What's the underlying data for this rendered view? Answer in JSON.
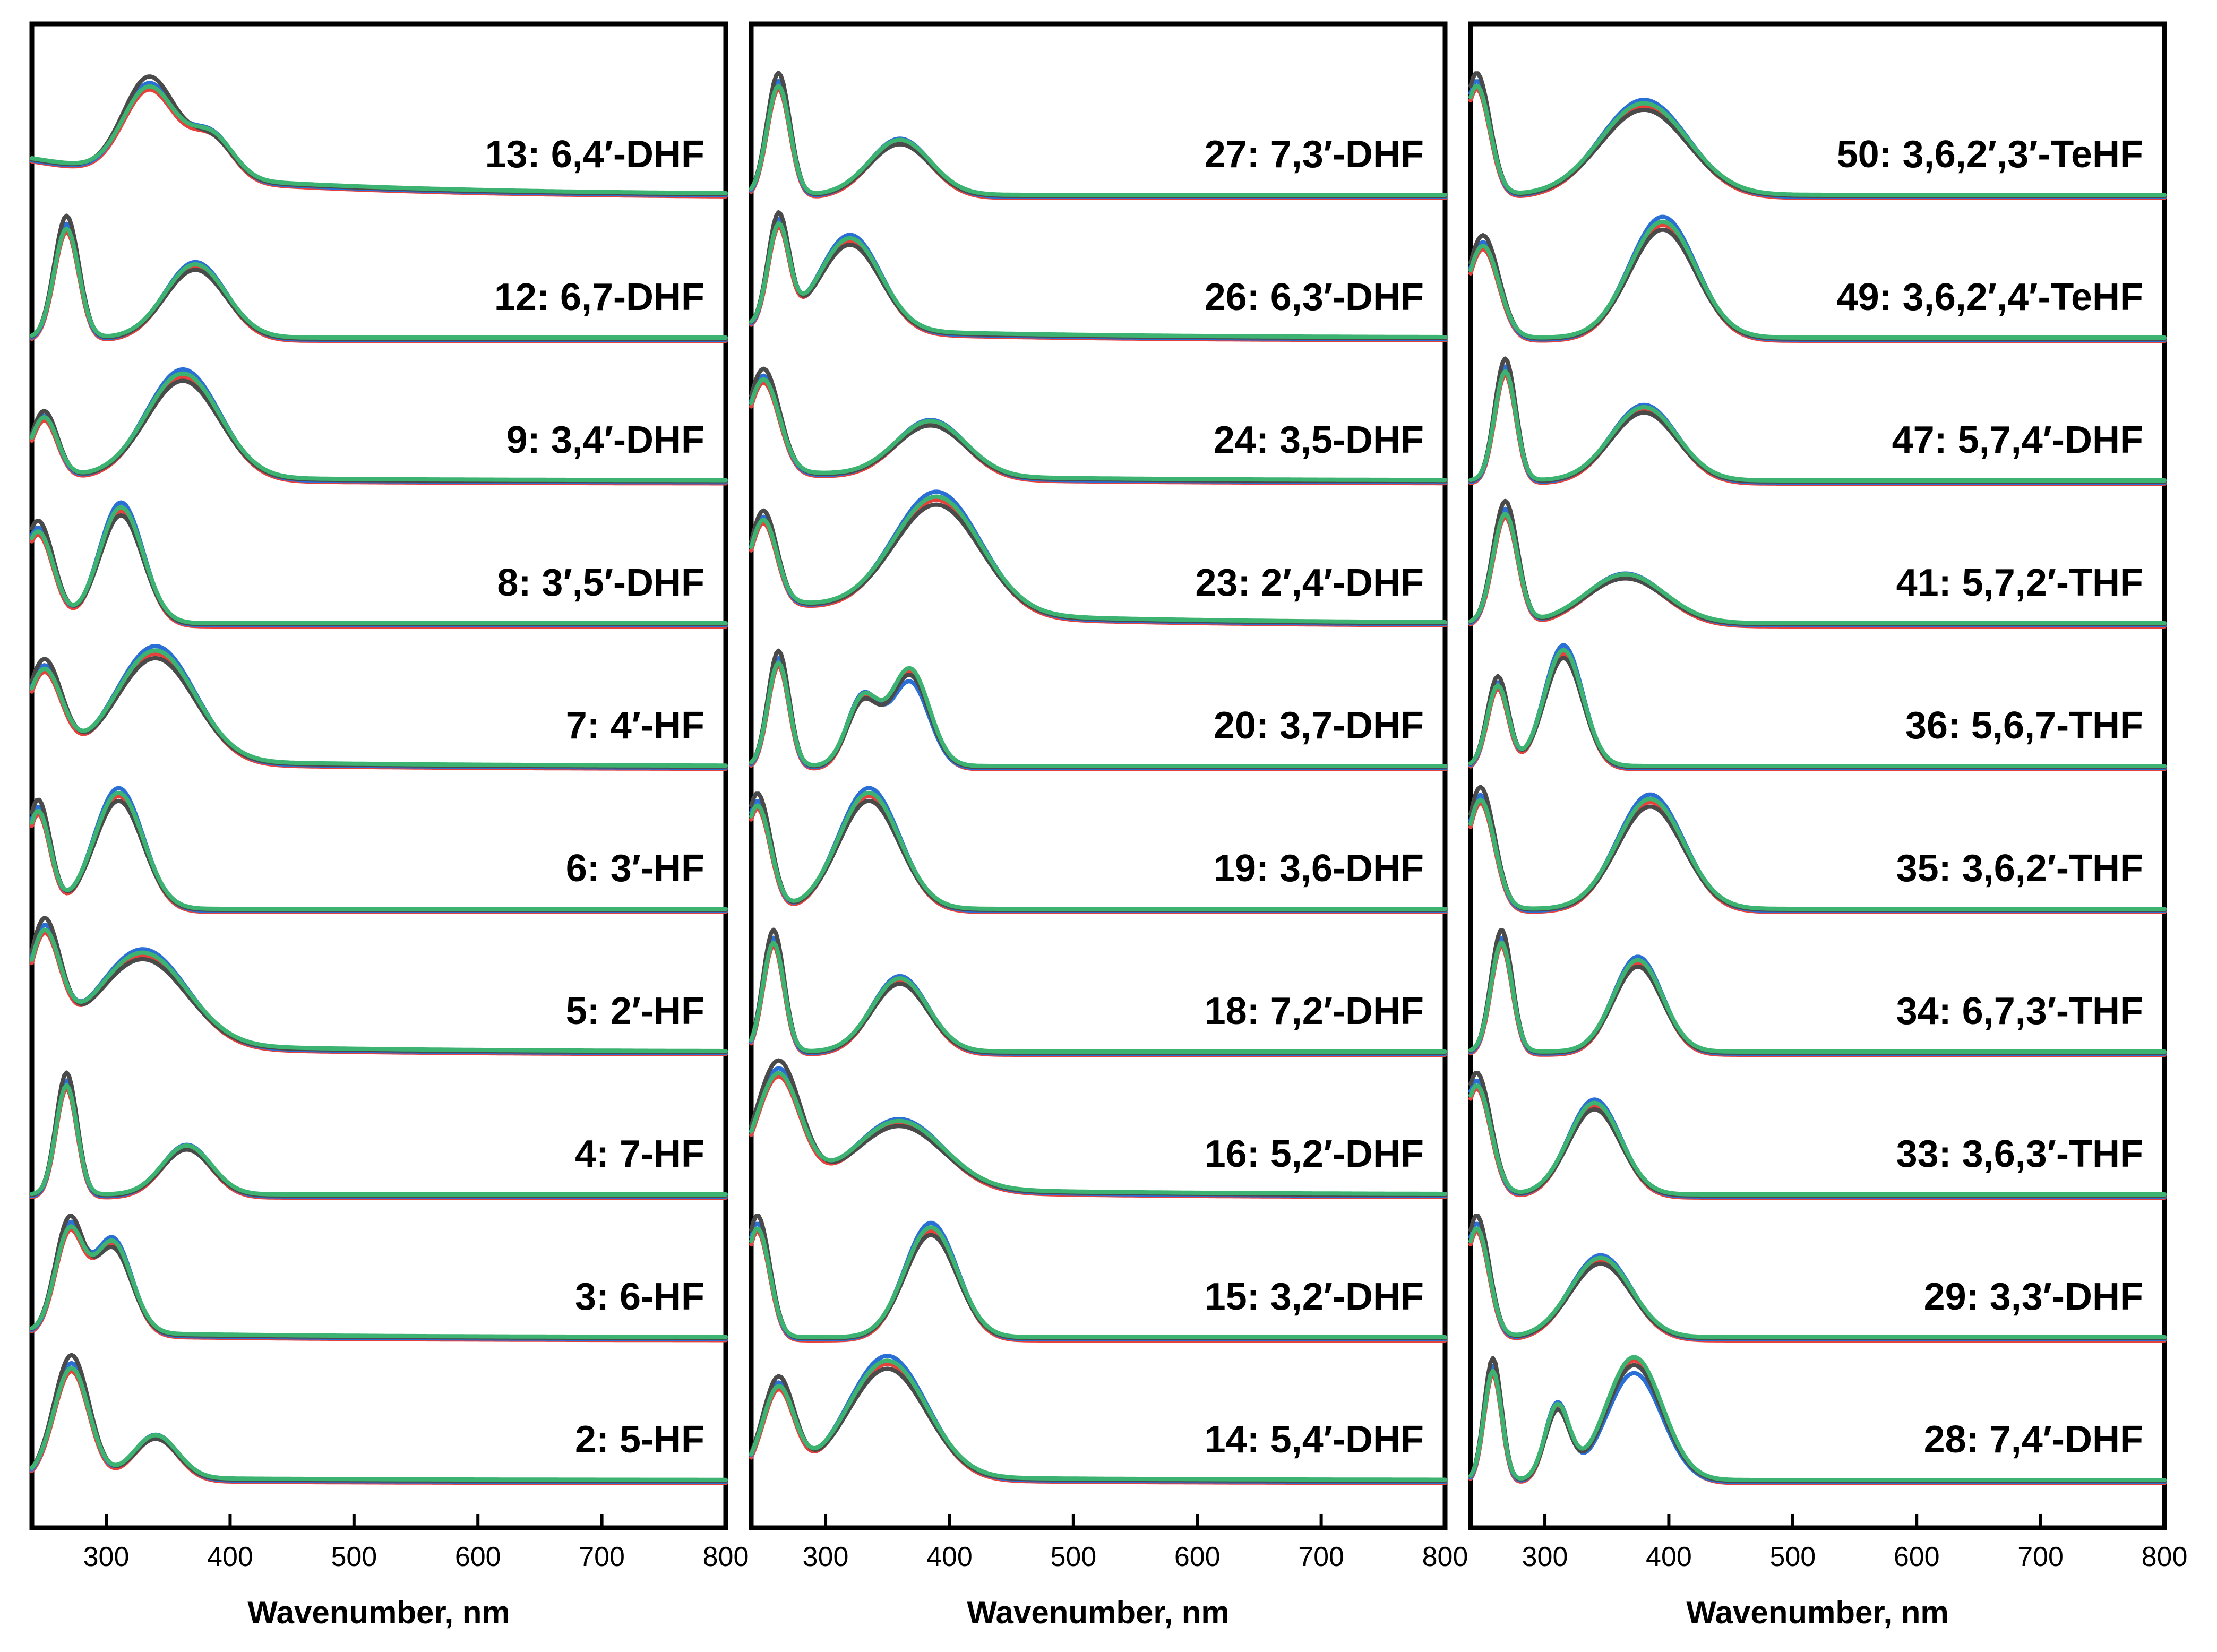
{
  "colors": {
    "red": "#e8413c",
    "blue": "#2a6fd6",
    "dark": "#4a4a4a",
    "green": "#3cb371"
  },
  "chart_data": [
    {
      "type": "line",
      "panel": "left",
      "xlabel": "Wavenumber, nm",
      "ylabel": "",
      "xlim": [
        240,
        800
      ],
      "xticks": [
        "300",
        "400",
        "500",
        "600",
        "700",
        "800"
      ],
      "series_colors": [
        "red",
        "blue",
        "dark",
        "green"
      ],
      "traces": [
        {
          "label": "13: 6,4′-DHF",
          "peaks": [
            {
              "x": 335,
              "h": 0.75,
              "w": 30
            },
            {
              "x": 385,
              "h": 0.35,
              "w": 25
            }
          ],
          "base": 0.3
        },
        {
          "label": "12: 6,7-DHF",
          "peaks": [
            {
              "x": 268,
              "h": 0.95,
              "w": 14
            },
            {
              "x": 372,
              "h": 0.6,
              "w": 35
            }
          ],
          "base": 0.0
        },
        {
          "label": "9: 3,4′-DHF",
          "peaks": [
            {
              "x": 250,
              "h": 0.5,
              "w": 15
            },
            {
              "x": 362,
              "h": 0.85,
              "w": 42
            }
          ],
          "base": 0.05
        },
        {
          "label": "8: 3′,5′-DHF",
          "peaks": [
            {
              "x": 245,
              "h": 0.8,
              "w": 18
            },
            {
              "x": 312,
              "h": 0.95,
              "w": 25
            }
          ],
          "base": 0.0
        },
        {
          "label": "7: 4′-HF",
          "peaks": [
            {
              "x": 250,
              "h": 0.75,
              "w": 20
            },
            {
              "x": 340,
              "h": 0.9,
              "w": 45
            }
          ],
          "base": 0.08
        },
        {
          "label": "6: 3′-HF",
          "peaks": [
            {
              "x": 245,
              "h": 0.85,
              "w": 14
            },
            {
              "x": 310,
              "h": 0.95,
              "w": 28
            }
          ],
          "base": 0.0
        },
        {
          "label": "5: 2′-HF",
          "peaks": [
            {
              "x": 250,
              "h": 0.9,
              "w": 18
            },
            {
              "x": 330,
              "h": 0.75,
              "w": 50
            }
          ],
          "base": 0.1
        },
        {
          "label": "4: 7-HF",
          "peaks": [
            {
              "x": 268,
              "h": 0.95,
              "w": 12
            },
            {
              "x": 365,
              "h": 0.4,
              "w": 28
            }
          ],
          "base": 0.0
        },
        {
          "label": "3: 6-HF",
          "peaks": [
            {
              "x": 270,
              "h": 0.85,
              "w": 16
            },
            {
              "x": 305,
              "h": 0.75,
              "w": 22
            }
          ],
          "base": 0.05
        },
        {
          "label": "2: 5-HF",
          "peaks": [
            {
              "x": 272,
              "h": 0.95,
              "w": 20
            },
            {
              "x": 340,
              "h": 0.35,
              "w": 25
            }
          ],
          "base": 0.03
        }
      ]
    },
    {
      "type": "line",
      "panel": "middle",
      "xlabel": "Wavenumber, nm",
      "ylabel": "",
      "xlim": [
        240,
        800
      ],
      "xticks": [
        "300",
        "400",
        "500",
        "600",
        "700",
        "800"
      ],
      "series_colors": [
        "red",
        "blue",
        "dark",
        "green"
      ],
      "traces": [
        {
          "label": "27: 7,3′-DHF",
          "peaks": [
            {
              "x": 262,
              "h": 0.95,
              "w": 13
            },
            {
              "x": 360,
              "h": 0.45,
              "w": 35
            }
          ],
          "base": 0.0
        },
        {
          "label": "26: 6,3′-DHF",
          "peaks": [
            {
              "x": 262,
              "h": 0.85,
              "w": 12
            },
            {
              "x": 320,
              "h": 0.75,
              "w": 35
            }
          ],
          "base": 0.1
        },
        {
          "label": "24: 3,5-DHF",
          "peaks": [
            {
              "x": 250,
              "h": 0.8,
              "w": 18
            },
            {
              "x": 385,
              "h": 0.45,
              "w": 40
            }
          ],
          "base": 0.08
        },
        {
          "label": "23: 2′,4′-DHF",
          "peaks": [
            {
              "x": 250,
              "h": 0.7,
              "w": 15
            },
            {
              "x": 390,
              "h": 0.95,
              "w": 50
            }
          ],
          "base": 0.2
        },
        {
          "label": "20: 3,7-DHF",
          "peaks": [
            {
              "x": 262,
              "h": 0.9,
              "w": 12
            },
            {
              "x": 330,
              "h": 0.55,
              "w": 18
            },
            {
              "x": 368,
              "h": 0.75,
              "w": 22
            }
          ],
          "base": 0.0
        },
        {
          "label": "19: 3,6-DHF",
          "peaks": [
            {
              "x": 245,
              "h": 0.9,
              "w": 15
            },
            {
              "x": 335,
              "h": 0.95,
              "w": 35
            }
          ],
          "base": 0.0
        },
        {
          "label": "18: 7,2′-DHF",
          "peaks": [
            {
              "x": 258,
              "h": 0.95,
              "w": 12
            },
            {
              "x": 360,
              "h": 0.6,
              "w": 32
            }
          ],
          "base": 0.0
        },
        {
          "label": "16: 5,2′-DHF",
          "peaks": [
            {
              "x": 262,
              "h": 0.95,
              "w": 25
            },
            {
              "x": 360,
              "h": 0.55,
              "w": 50
            }
          ],
          "base": 0.1
        },
        {
          "label": "15: 3,2′-DHF",
          "peaks": [
            {
              "x": 245,
              "h": 0.95,
              "w": 14
            },
            {
              "x": 385,
              "h": 0.9,
              "w": 30
            }
          ],
          "base": 0.0
        },
        {
          "label": "14: 5,4′-DHF",
          "peaks": [
            {
              "x": 262,
              "h": 0.75,
              "w": 18
            },
            {
              "x": 350,
              "h": 0.95,
              "w": 45
            }
          ],
          "base": 0.05
        }
      ]
    },
    {
      "type": "line",
      "panel": "right",
      "xlabel": "Wavenumber, nm",
      "ylabel": "",
      "xlim": [
        240,
        800
      ],
      "xticks": [
        "300",
        "400",
        "500",
        "600",
        "700",
        "800"
      ],
      "series_colors": [
        "red",
        "blue",
        "dark",
        "green"
      ],
      "traces": [
        {
          "label": "50: 3,6,2′,3′-TeHF",
          "peaks": [
            {
              "x": 245,
              "h": 0.95,
              "w": 15
            },
            {
              "x": 380,
              "h": 0.75,
              "w": 50
            }
          ],
          "base": 0.0
        },
        {
          "label": "49: 3,6,2′,4′-TeHF",
          "peaks": [
            {
              "x": 250,
              "h": 0.8,
              "w": 18
            },
            {
              "x": 395,
              "h": 0.95,
              "w": 38
            }
          ],
          "base": 0.0
        },
        {
          "label": "47: 5,7,4′-DHF",
          "peaks": [
            {
              "x": 268,
              "h": 0.95,
              "w": 12
            },
            {
              "x": 380,
              "h": 0.6,
              "w": 38
            }
          ],
          "base": 0.0
        },
        {
          "label": "41: 5,7,2′-THF",
          "peaks": [
            {
              "x": 268,
              "h": 0.95,
              "w": 14
            },
            {
              "x": 365,
              "h": 0.4,
              "w": 45
            }
          ],
          "base": 0.0
        },
        {
          "label": "36: 5,6,7-THF",
          "peaks": [
            {
              "x": 262,
              "h": 0.7,
              "w": 12
            },
            {
              "x": 315,
              "h": 0.95,
              "w": 22
            }
          ],
          "base": 0.0
        },
        {
          "label": "35: 3,6,2′-THF",
          "peaks": [
            {
              "x": 248,
              "h": 0.95,
              "w": 16
            },
            {
              "x": 385,
              "h": 0.9,
              "w": 38
            }
          ],
          "base": 0.0
        },
        {
          "label": "34: 6,7,3′-THF",
          "peaks": [
            {
              "x": 265,
              "h": 0.95,
              "w": 12
            },
            {
              "x": 375,
              "h": 0.75,
              "w": 28
            }
          ],
          "base": 0.0
        },
        {
          "label": "33: 3,6,3′-THF",
          "peaks": [
            {
              "x": 245,
              "h": 0.95,
              "w": 16
            },
            {
              "x": 340,
              "h": 0.75,
              "w": 30
            }
          ],
          "base": 0.0
        },
        {
          "label": "29: 3,3′-DHF",
          "peaks": [
            {
              "x": 245,
              "h": 0.95,
              "w": 14
            },
            {
              "x": 345,
              "h": 0.65,
              "w": 35
            }
          ],
          "base": 0.0
        },
        {
          "label": "28: 7,4′-DHF",
          "peaks": [
            {
              "x": 258,
              "h": 0.95,
              "w": 10
            },
            {
              "x": 310,
              "h": 0.6,
              "w": 14
            },
            {
              "x": 372,
              "h": 0.95,
              "w": 32
            }
          ],
          "base": 0.0
        }
      ]
    }
  ]
}
